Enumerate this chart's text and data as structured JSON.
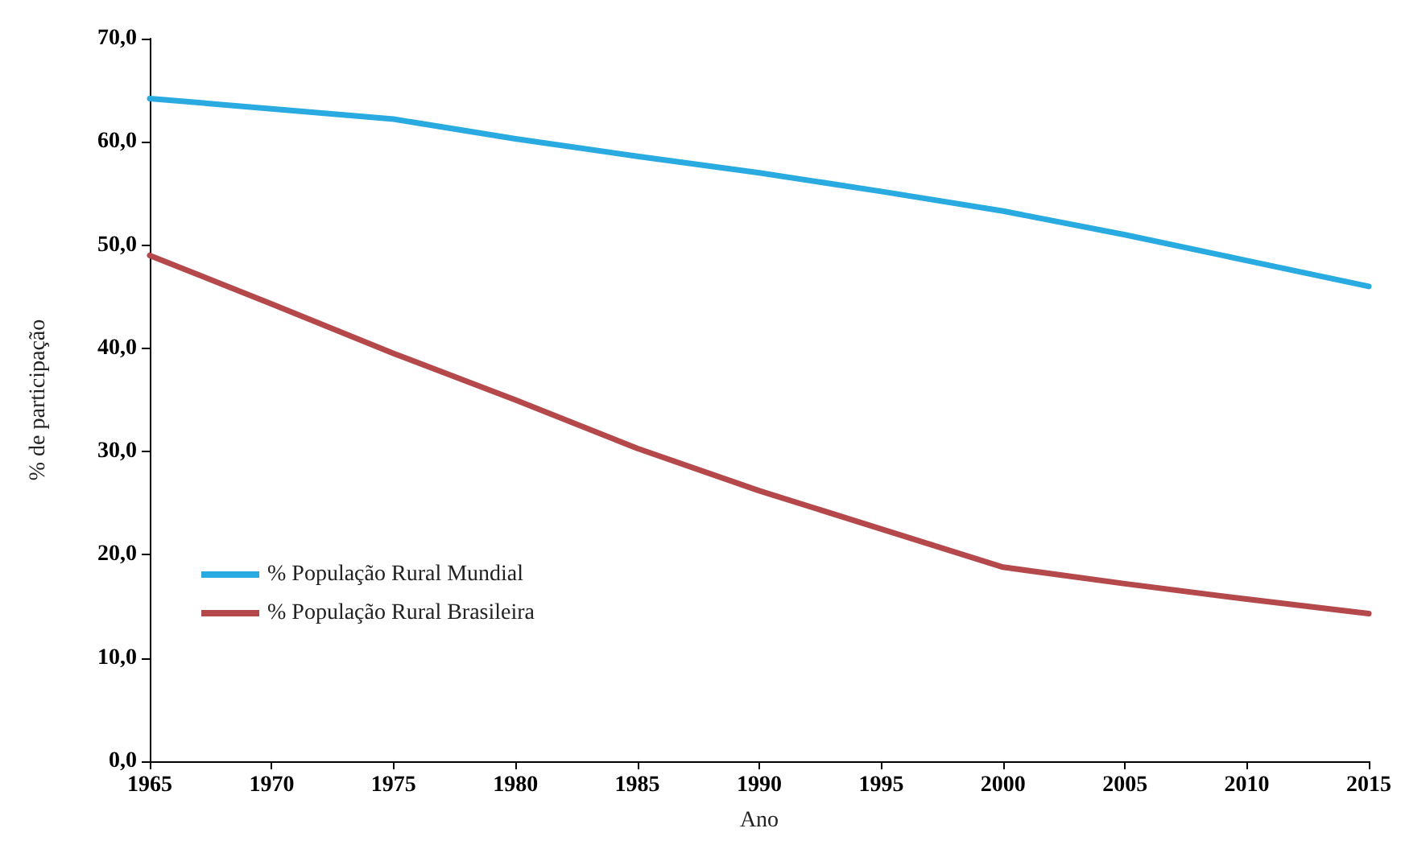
{
  "chart_data": {
    "type": "line",
    "xlabel": "Ano",
    "ylabel": "% de participação",
    "x": [
      1965,
      1970,
      1975,
      1980,
      1985,
      1990,
      1995,
      2000,
      2005,
      2010,
      2015
    ],
    "series": [
      {
        "name": "% População Rural Mundial",
        "color": "#29aae1",
        "values": [
          64.2,
          63.2,
          62.2,
          60.3,
          58.6,
          57,
          55.2,
          53.3,
          51,
          48.5,
          46
        ]
      },
      {
        "name": "% População Rural Brasileira",
        "color": "#b5484b",
        "values": [
          49,
          44.3,
          39.5,
          35,
          30.3,
          26.2,
          22.5,
          18.8,
          17.2,
          15.7,
          14.3
        ]
      }
    ],
    "xlim": [
      1965,
      2015
    ],
    "xticks": [
      1965,
      1970,
      1975,
      1980,
      1985,
      1990,
      1995,
      2000,
      2005,
      2010,
      2015
    ],
    "ylim": [
      0,
      70
    ],
    "yticks": [
      {
        "value": 0,
        "label": "0,0"
      },
      {
        "value": 10,
        "label": "10,0"
      },
      {
        "value": 20,
        "label": "20,0"
      },
      {
        "value": 30,
        "label": "30,0"
      },
      {
        "value": 40,
        "label": "40,0"
      },
      {
        "value": 50,
        "label": "50,0"
      },
      {
        "value": 60,
        "label": "60,0"
      },
      {
        "value": 70,
        "label": "70,0"
      }
    ],
    "grid": false,
    "legend": "bottom left",
    "marker": "none",
    "line_style": "solid"
  }
}
